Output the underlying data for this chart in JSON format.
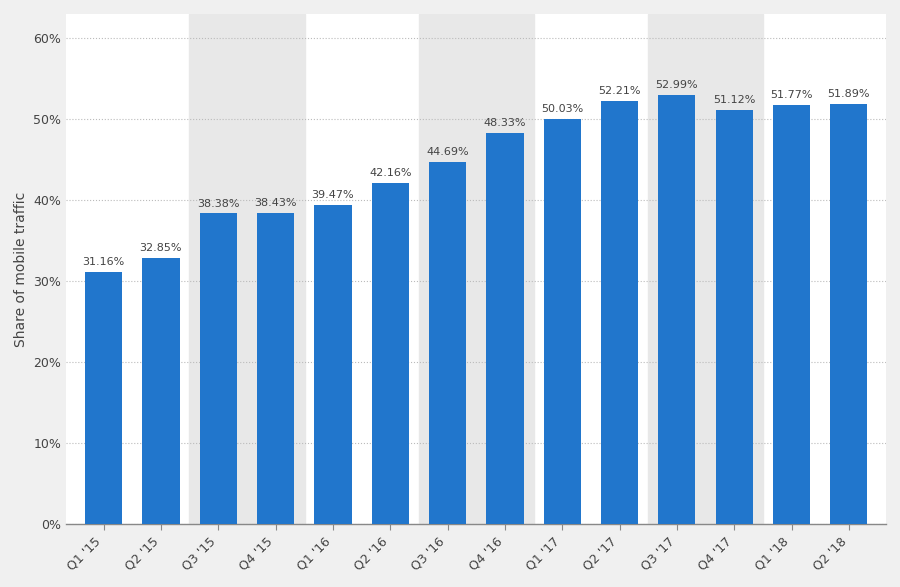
{
  "categories": [
    "Q1 '15",
    "Q2 '15",
    "Q3 '15",
    "Q4 '15",
    "Q1 '16",
    "Q2 '16",
    "Q3 '16",
    "Q4 '16",
    "Q1 '17",
    "Q2 '17",
    "Q3 '17",
    "Q4 '17",
    "Q1 '18",
    "Q2 '18"
  ],
  "values": [
    31.16,
    32.85,
    38.38,
    38.43,
    39.47,
    42.16,
    44.69,
    48.33,
    50.03,
    52.21,
    52.99,
    51.12,
    51.77,
    51.89
  ],
  "labels": [
    "31.16%",
    "32.85%",
    "38.38%",
    "38.43%",
    "39.47%",
    "42.16%",
    "44.69%",
    "48.33%",
    "50.03%",
    "52.21%",
    "52.99%",
    "51.12%",
    "51.77%",
    "51.89%"
  ],
  "bar_color": "#2176cc",
  "ylabel": "Share of mobile traffic",
  "yticks": [
    0,
    10,
    20,
    30,
    40,
    50,
    60
  ],
  "ytick_labels": [
    "0%",
    "10%",
    "20%",
    "30%",
    "40%",
    "50%",
    "60%"
  ],
  "ylim": [
    0,
    63
  ],
  "background_color": "#f0f0f0",
  "plot_background_color": "#ffffff",
  "grid_color": "#bbbbbb",
  "shade_color": "#e8e8e8",
  "label_fontsize": 8,
  "axis_label_fontsize": 10,
  "tick_fontsize": 9,
  "bar_width": 0.65,
  "label_color": "#444444",
  "shaded_indices": [
    2,
    3,
    6,
    7,
    10,
    11
  ]
}
